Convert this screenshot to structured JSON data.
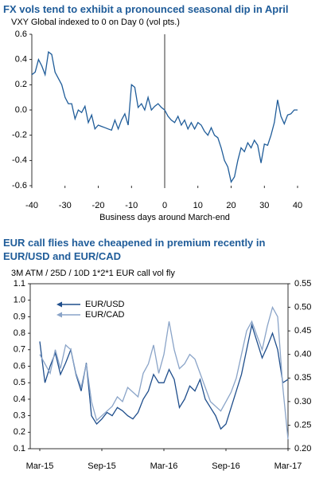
{
  "chart_data": [
    {
      "type": "line",
      "title": "FX vols tend to exhibit a pronounced seasonal dip in April",
      "subtitle": "VXY Global indexed to 0 on Day 0 (vol pts.)",
      "x_label": "Business days around March-end",
      "x": [
        -40,
        -39,
        -38,
        -37,
        -36,
        -35,
        -34,
        -33,
        -32,
        -31,
        -30,
        -29,
        -28,
        -27,
        -26,
        -25,
        -24,
        -23,
        -22,
        -21,
        -20,
        -19,
        -18,
        -17,
        -16,
        -15,
        -14,
        -13,
        -12,
        -11,
        -10,
        -9,
        -8,
        -7,
        -6,
        -5,
        -4,
        -3,
        -2,
        -1,
        0,
        1,
        2,
        3,
        4,
        5,
        6,
        7,
        8,
        9,
        10,
        11,
        12,
        13,
        14,
        15,
        16,
        17,
        18,
        19,
        20,
        21,
        22,
        23,
        24,
        25,
        26,
        27,
        28,
        29,
        30,
        31,
        32,
        33,
        34,
        35,
        36,
        37,
        38,
        39,
        40
      ],
      "series": [
        {
          "name": "VXY Global",
          "color": "#1f5c99",
          "values": [
            0.28,
            0.3,
            0.4,
            0.35,
            0.28,
            0.46,
            0.44,
            0.3,
            0.25,
            0.2,
            0.1,
            0.05,
            0.05,
            -0.07,
            0.0,
            -0.02,
            0.03,
            -0.1,
            -0.04,
            -0.15,
            -0.12,
            -0.13,
            -0.14,
            -0.15,
            -0.16,
            -0.08,
            -0.15,
            -0.08,
            -0.03,
            -0.12,
            0.2,
            0.18,
            0.02,
            0.05,
            0.0,
            0.1,
            0.0,
            0.03,
            0.05,
            0.02,
            0,
            -0.05,
            -0.08,
            -0.1,
            -0.05,
            -0.12,
            -0.08,
            -0.15,
            -0.1,
            -0.15,
            -0.1,
            -0.12,
            -0.17,
            -0.2,
            -0.14,
            -0.2,
            -0.22,
            -0.3,
            -0.4,
            -0.45,
            -0.57,
            -0.53,
            -0.4,
            -0.3,
            -0.33,
            -0.26,
            -0.3,
            -0.24,
            -0.28,
            -0.42,
            -0.27,
            -0.28,
            -0.2,
            -0.1,
            0.08,
            -0.05,
            -0.11,
            -0.04,
            -0.03,
            0.0,
            0.0
          ]
        }
      ],
      "xlim": [
        -40,
        40
      ],
      "xticks": [
        -40,
        -30,
        -20,
        -10,
        0,
        10,
        20,
        30,
        40
      ],
      "ylim": [
        -0.6,
        0.6
      ],
      "yticks": [
        -0.6,
        -0.4,
        -0.2,
        {
          "value": 0,
          "label": "0.0"
        },
        0.2,
        0.4,
        0.6
      ],
      "vline": 0
    },
    {
      "type": "line",
      "title": "EUR call flies have cheapened in premium recently in EUR/USD and EUR/CAD",
      "subtitle": "3M ATM / 25D / 10D 1*2*1 EUR call vol fly",
      "x": [
        0,
        0.5,
        1,
        1.5,
        2,
        2.5,
        3,
        3.5,
        4,
        4.5,
        5,
        5.5,
        6,
        6.5,
        7,
        7.5,
        8,
        8.5,
        9,
        9.5,
        10,
        10.5,
        11,
        11.5,
        12,
        12.5,
        13,
        13.5,
        14,
        14.5,
        15,
        15.5,
        16,
        16.5,
        17,
        17.5,
        18,
        18.5,
        19,
        19.5,
        20,
        20.5,
        21,
        21.5,
        22,
        22.5,
        23,
        23.5,
        24
      ],
      "series": [
        {
          "name": "EUR/USD",
          "color": "#1f4e8c",
          "values": [
            0.75,
            0.5,
            0.6,
            0.68,
            0.55,
            0.62,
            0.7,
            0.55,
            0.45,
            0.62,
            0.3,
            0.25,
            0.28,
            0.32,
            0.3,
            0.35,
            0.33,
            0.3,
            0.28,
            0.32,
            0.4,
            0.45,
            0.55,
            0.5,
            0.5,
            0.58,
            0.52,
            0.35,
            0.4,
            0.48,
            0.45,
            0.52,
            0.4,
            0.35,
            0.3,
            0.22,
            0.25,
            0.35,
            0.45,
            0.55,
            0.7,
            0.85,
            0.75,
            0.65,
            0.72,
            0.8,
            0.7,
            0.5,
            0.52
          ]
        },
        {
          "name": "EUR/CAD",
          "color": "#8aa4c8",
          "axis": "y2",
          "values": [
            0.4,
            0.38,
            0.36,
            0.41,
            0.37,
            0.42,
            0.41,
            0.36,
            0.33,
            0.38,
            0.3,
            0.26,
            0.27,
            0.28,
            0.29,
            0.31,
            0.3,
            0.33,
            0.32,
            0.31,
            0.36,
            0.38,
            0.42,
            0.36,
            0.4,
            0.47,
            0.41,
            0.37,
            0.38,
            0.4,
            0.39,
            0.36,
            0.33,
            0.3,
            0.29,
            0.28,
            0.3,
            0.32,
            0.35,
            0.4,
            0.45,
            0.47,
            0.44,
            0.41,
            0.46,
            0.5,
            0.48,
            0.33,
            0.22
          ]
        }
      ],
      "xlim": [
        0,
        24
      ],
      "xticks": [
        {
          "value": 0,
          "label": "Mar-15"
        },
        {
          "value": 6,
          "label": "Sep-15"
        },
        {
          "value": 12,
          "label": "Mar-16"
        },
        {
          "value": 18,
          "label": "Sep-16"
        },
        {
          "value": 24,
          "label": "Mar-17"
        }
      ],
      "ylim": [
        0.1,
        1.1
      ],
      "yticks": [
        0.1,
        0.2,
        0.3,
        0.4,
        0.5,
        0.6,
        0.7,
        0.8,
        0.9,
        {
          "value": 1,
          "label": "1.0"
        },
        1.1
      ],
      "y2lim": [
        0.2,
        0.55
      ],
      "y2ticks": [
        {
          "value": 0.2,
          "label": "0.20"
        },
        0.25,
        {
          "value": 0.3,
          "label": "0.30"
        },
        0.35,
        {
          "value": 0.4,
          "label": "0.40"
        },
        0.45,
        {
          "value": 0.5,
          "label": "0.50"
        },
        0.55
      ],
      "legend": "upper left"
    }
  ]
}
